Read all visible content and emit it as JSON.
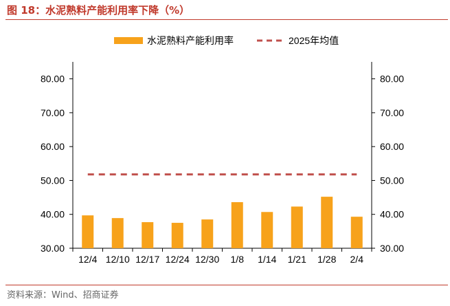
{
  "figure": {
    "title": "图 18：水泥熟料产能利用率下降（%）",
    "source": "资料来源：Wind、招商证券"
  },
  "colors": {
    "bar": "#f7a21b",
    "avg_line": "#c0504d",
    "title": "#c0392b",
    "axis": "#000000"
  },
  "chart_data": {
    "type": "bar",
    "title": "",
    "xlabel": "",
    "ylabel": "",
    "categories": [
      "12/4",
      "12/10",
      "12/17",
      "12/24",
      "12/30",
      "1/8",
      "1/14",
      "1/21",
      "1/28",
      "2/4"
    ],
    "series": [
      {
        "name": "水泥熟料产能利用率",
        "type": "bar",
        "values": [
          39.7,
          38.9,
          37.7,
          37.5,
          38.5,
          43.6,
          40.7,
          42.3,
          45.2,
          39.3
        ]
      },
      {
        "name": "2025年均值",
        "type": "line",
        "style": "dashed",
        "values": [
          51.8,
          51.8,
          51.8,
          51.8,
          51.8,
          51.8,
          51.8,
          51.8,
          51.8,
          51.8
        ]
      }
    ],
    "ylim": [
      30,
      85
    ],
    "yticks": [
      "30.00",
      "40.00",
      "50.00",
      "60.00",
      "70.00",
      "80.00"
    ],
    "y2ticks": [
      "30.00",
      "40.00",
      "50.00",
      "60.00",
      "70.00",
      "80.00"
    ],
    "legend": "top-center",
    "grid": false
  }
}
